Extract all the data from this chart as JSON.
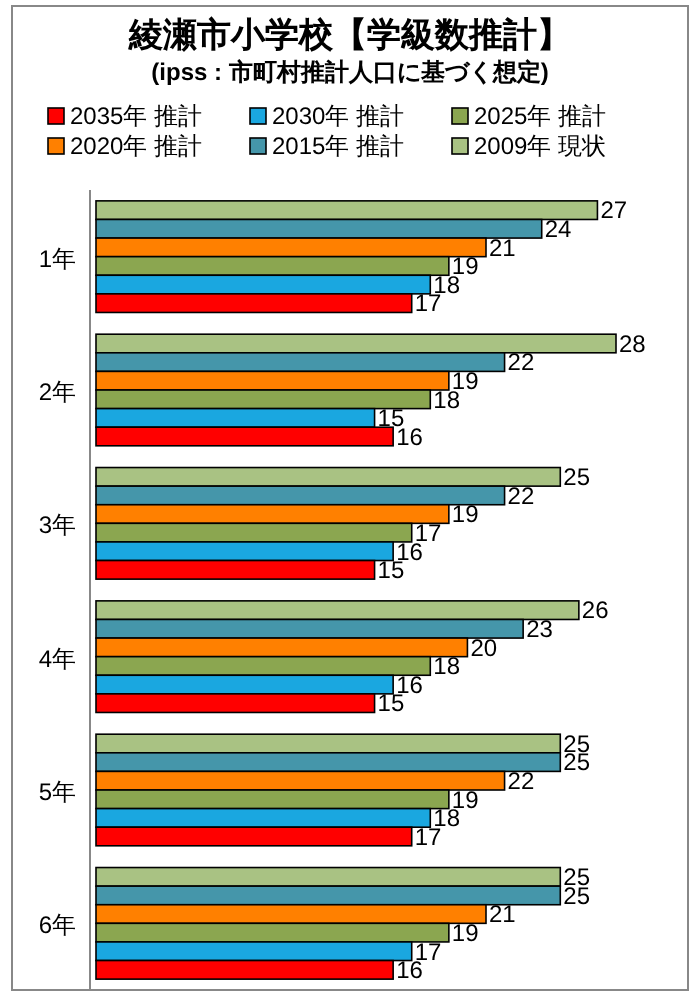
{
  "chart_data": {
    "type": "bar",
    "orientation": "horizontal",
    "data_labels": true,
    "legend": "top",
    "title": "綾瀬市小学校【学級数推計】",
    "subtitle": "(ipss : 市町村推計人口に基づく想定)",
    "categories": [
      "1年",
      "2年",
      "3年",
      "4年",
      "5年",
      "6年"
    ],
    "series": [
      {
        "name": "2035年  推計",
        "color": "#ff0000",
        "values": [
          17,
          16,
          15,
          15,
          17,
          16
        ]
      },
      {
        "name": "2030年  推計",
        "color": "#1aa7e0",
        "values": [
          18,
          15,
          16,
          16,
          18,
          17
        ]
      },
      {
        "name": "2025年  推計",
        "color": "#8ba650",
        "values": [
          19,
          18,
          17,
          18,
          19,
          19
        ]
      },
      {
        "name": "2020年  推計",
        "color": "#ff8000",
        "values": [
          21,
          19,
          19,
          20,
          22,
          21
        ]
      },
      {
        "name": "2015年  推計",
        "color": "#4596aa",
        "values": [
          24,
          22,
          22,
          23,
          25,
          25
        ]
      },
      {
        "name": "2009年  現状",
        "color": "#a9c283",
        "values": [
          27,
          28,
          25,
          26,
          25,
          25
        ]
      }
    ]
  }
}
